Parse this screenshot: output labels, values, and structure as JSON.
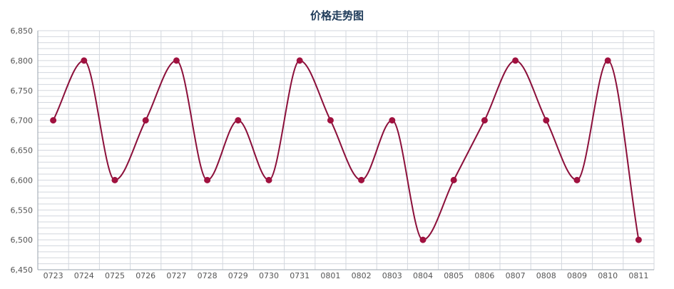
{
  "chart_data": {
    "type": "line",
    "title": "价格走势图",
    "xlabel": "",
    "ylabel": "",
    "categories": [
      "0723",
      "0724",
      "0725",
      "0726",
      "0727",
      "0728",
      "0729",
      "0730",
      "0731",
      "0801",
      "0802",
      "0803",
      "0804",
      "0805",
      "0806",
      "0807",
      "0808",
      "0809",
      "0810",
      "0811"
    ],
    "series": [
      {
        "values": [
          6700,
          6800,
          6600,
          6700,
          6800,
          6600,
          6700,
          6600,
          6800,
          6700,
          6600,
          6700,
          6500,
          6600,
          6700,
          6800,
          6700,
          6600,
          6800,
          6500
        ]
      }
    ],
    "ylim": [
      6450,
      6850
    ],
    "yticks": [
      6450,
      6500,
      6550,
      6600,
      6650,
      6700,
      6750,
      6800,
      6850
    ],
    "ytick_labels": [
      "6,450",
      "6,500",
      "6,550",
      "6,600",
      "6,650",
      "6,700",
      "6,750",
      "6,800",
      "6,850"
    ],
    "grid": true,
    "smooth": true,
    "colors": {
      "line": "#8b0f3a",
      "marker": "#a0113f",
      "grid": "#d3d7de",
      "axis": "#9aa3ad",
      "tick_text": "#555555",
      "title": "#1f3b5a"
    }
  }
}
